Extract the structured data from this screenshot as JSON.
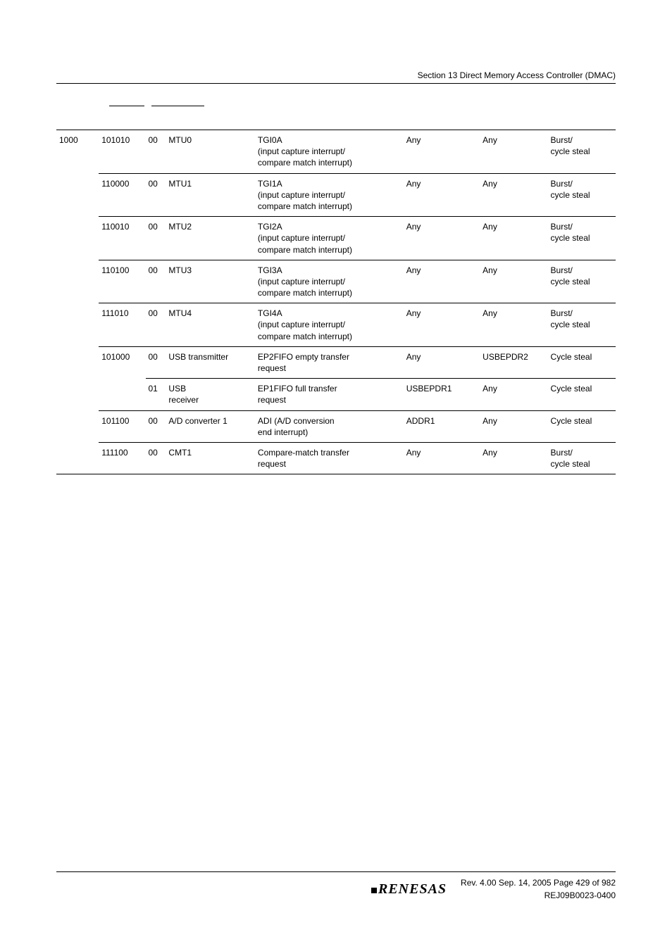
{
  "header": {
    "section_title": "Section 13   Direct Memory Access Controller (DMAC)"
  },
  "table": {
    "channel": "1000",
    "rows": [
      {
        "res": "101010",
        "rl": "00",
        "module": "MTU0",
        "req1": "TGI0A",
        "req2": "(input capture interrupt/",
        "req3": "compare match interrupt)",
        "src": "Any",
        "dst": "Any",
        "bus1": "Burst/",
        "bus2": "cycle steal",
        "line": "top"
      },
      {
        "res": "110000",
        "rl": "00",
        "module": "MTU1",
        "req1": "TGI1A",
        "req2": "(input capture interrupt/",
        "req3": "compare match interrupt)",
        "src": "Any",
        "dst": "Any",
        "bus1": "Burst/",
        "bus2": "cycle steal",
        "line": "row"
      },
      {
        "res": "110010",
        "rl": "00",
        "module": "MTU2",
        "req1": "TGI2A",
        "req2": "(input capture interrupt/",
        "req3": "compare match interrupt)",
        "src": "Any",
        "dst": "Any",
        "bus1": "Burst/",
        "bus2": "cycle steal",
        "line": "row"
      },
      {
        "res": "110100",
        "rl": "00",
        "module": "MTU3",
        "req1": "TGI3A",
        "req2": "(input capture interrupt/",
        "req3": "compare match interrupt)",
        "src": "Any",
        "dst": "Any",
        "bus1": "Burst/",
        "bus2": "cycle steal",
        "line": "row"
      },
      {
        "res": "111010",
        "rl": "00",
        "module": "MTU4",
        "req1": "TGI4A",
        "req2": "(input capture interrupt/",
        "req3": "compare match interrupt)",
        "src": "Any",
        "dst": "Any",
        "bus1": "Burst/",
        "bus2": "cycle steal",
        "line": "row"
      },
      {
        "res": "101000",
        "rl": "00",
        "module": "USB transmitter",
        "req1": "EP2FIFO empty transfer",
        "req2": "request",
        "req3": "",
        "src": "Any",
        "dst": "USBEPDR2",
        "bus1": "Cycle steal",
        "bus2": "",
        "line": "row"
      },
      {
        "res": "",
        "rl": "01",
        "module": "USB",
        "module2": "receiver",
        "req1": "EP1FIFO full transfer",
        "req2": "request",
        "req3": "",
        "src": "USBEPDR1",
        "dst": "Any",
        "bus1": "Cycle steal",
        "bus2": "",
        "line": "row"
      },
      {
        "res": "101100",
        "rl": "00",
        "module": "A/D converter 1",
        "req1": "ADI (A/D conversion",
        "req2": "end interrupt)",
        "req3": "",
        "src": "ADDR1",
        "dst": "Any",
        "bus1": "Cycle steal",
        "bus2": "",
        "line": "row"
      },
      {
        "res": "111100",
        "rl": "00",
        "module": "CMT1",
        "req1": "Compare-match transfer",
        "req2": "request",
        "req3": "",
        "src": "Any",
        "dst": "Any",
        "bus1": "Burst/",
        "bus2": "cycle steal",
        "line": "row-bottom"
      }
    ]
  },
  "footer": {
    "logo": "RENESAS",
    "rev_line": "Rev. 4.00  Sep. 14, 2005  Page 429 of 982",
    "doc_line": "REJ09B0023-0400"
  }
}
